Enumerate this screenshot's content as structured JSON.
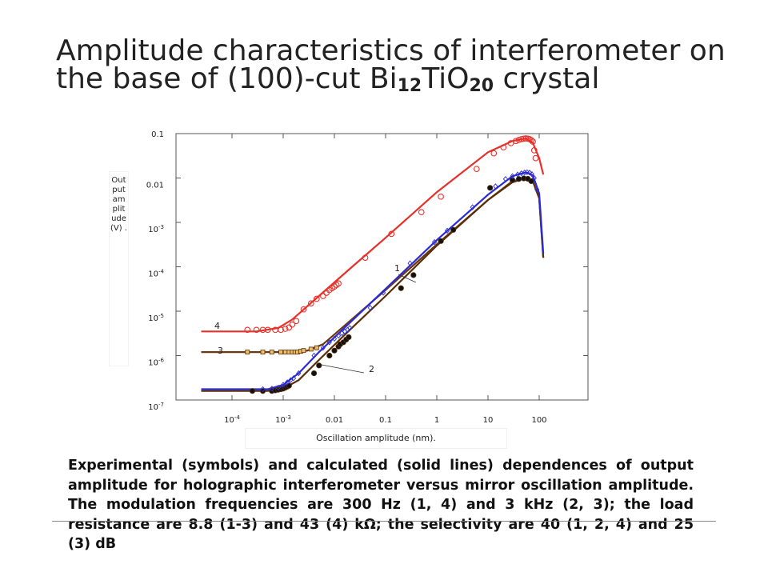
{
  "slide": {
    "title_part1": "Amplitude characteristics of interferometer on the base of  (100)-cut Bi",
    "title_sub1": "12",
    "title_part2": "TiO",
    "title_sub2": "20",
    "title_part3": " crystal",
    "caption": "Experimental (symbols) and calculated (solid lines) dependences of output amplitude for holographic interferometer versus mirror oscillation amplitude. The modulation frequencies are 300 Hz (1, 4) and 3 kHz (2, 3); the load resistance are 8.8 (1-3) and 43 (4) kΩ; the selectivity are 40 (1, 2, 4) and 25 (3) dB"
  },
  "chart_data": {
    "type": "line",
    "title": "",
    "xlabel": "Oscillation amplitude (nm).",
    "ylabel": "Out put am plit ude (V) .",
    "xscale": "log",
    "yscale": "log",
    "xlim": [
      0.0001,
      100
    ],
    "ylim": [
      1e-07,
      0.1
    ],
    "x_tick_labels": [
      {
        "value": 0.0001,
        "base": "10",
        "exp": "-4"
      },
      {
        "value": 0.001,
        "base": "10",
        "exp": "-3"
      },
      {
        "value": 0.01,
        "label": "0.01"
      },
      {
        "value": 0.1,
        "label": "0.1"
      },
      {
        "value": 1,
        "label": "1"
      },
      {
        "value": 10,
        "label": "10"
      },
      {
        "value": 100,
        "label": "100"
      }
    ],
    "y_tick_labels": [
      {
        "value": 0.1,
        "label": "0.1"
      },
      {
        "value": 0.01,
        "label": "0.01"
      },
      {
        "value": 0.001,
        "base": "10",
        "exp": "-3"
      },
      {
        "value": 0.0001,
        "base": "10",
        "exp": "-4"
      },
      {
        "value": 1e-05,
        "base": "10",
        "exp": "-5"
      },
      {
        "value": 1e-06,
        "base": "10",
        "exp": "-6"
      },
      {
        "value": 1e-07,
        "base": "10",
        "exp": "-7"
      }
    ],
    "grid": false,
    "curve_labels": [
      "1",
      "2",
      "3",
      "4"
    ],
    "series": [
      {
        "id": "4",
        "color": "#e8302a",
        "marker": "circle",
        "line_x": [
          2.5e-05,
          0.0003,
          0.0008,
          0.0015,
          0.005,
          0.02,
          0.1,
          1,
          10,
          30,
          55,
          75,
          100,
          120
        ],
        "line_y": [
          3.5e-06,
          3.5e-06,
          4.2e-06,
          6.5e-06,
          2.2e-05,
          9e-05,
          0.00045,
          0.0048,
          0.038,
          0.068,
          0.078,
          0.062,
          0.028,
          0.012
        ],
        "points_x": [
          0.0002,
          0.0003,
          0.0004,
          0.0005,
          0.0007,
          0.0009,
          0.0011,
          0.0013,
          0.0015,
          0.0018,
          0.0025,
          0.0035,
          0.0045,
          0.006,
          0.007,
          0.008,
          0.009,
          0.01,
          0.011,
          0.012,
          0.04,
          0.13,
          0.5,
          1.2,
          6,
          13,
          20,
          28,
          35,
          40,
          45,
          50,
          55,
          60,
          65,
          70,
          75,
          80,
          85
        ],
        "points_y": [
          3.8e-06,
          3.8e-06,
          3.8e-06,
          3.8e-06,
          3.8e-06,
          3.8e-06,
          4e-06,
          4.3e-06,
          5e-06,
          6e-06,
          1.1e-05,
          1.5e-05,
          1.9e-05,
          2.2e-05,
          2.6e-05,
          3e-05,
          3.3e-05,
          3.6e-05,
          3.9e-05,
          4.2e-05,
          0.00016,
          0.00055,
          0.0017,
          0.0038,
          0.016,
          0.036,
          0.049,
          0.061,
          0.068,
          0.072,
          0.075,
          0.077,
          0.078,
          0.077,
          0.075,
          0.071,
          0.066,
          0.042,
          0.028
        ]
      },
      {
        "id": "3",
        "color": "#6b3a10",
        "marker": "square",
        "line_x": [
          2.5e-05,
          0.002,
          0.003,
          0.006,
          0.02,
          0.1,
          1,
          10,
          30,
          55,
          75,
          100,
          120
        ],
        "line_y": [
          1.2e-06,
          1.2e-06,
          1.3e-06,
          1.8e-06,
          6e-06,
          3e-05,
          0.00032,
          0.0032,
          0.0085,
          0.01,
          0.0085,
          0.0035,
          0.00016
        ],
        "points_x": [
          0.0002,
          0.0004,
          0.0006,
          0.0009,
          0.0011,
          0.0013,
          0.0015,
          0.0017,
          0.0019,
          0.0022,
          0.0025,
          0.0035,
          0.0045
        ],
        "points_y": [
          1.2e-06,
          1.2e-06,
          1.2e-06,
          1.2e-06,
          1.2e-06,
          1.2e-06,
          1.2e-06,
          1.2e-06,
          1.2e-06,
          1.25e-06,
          1.3e-06,
          1.4e-06,
          1.5e-06
        ]
      },
      {
        "id": "2",
        "color": "#5a2f08",
        "marker": "filled-circle",
        "line_x": [
          2.5e-05,
          0.0005,
          0.001,
          0.002,
          0.005,
          0.02,
          0.1,
          1,
          10,
          30,
          55,
          75,
          100,
          120
        ],
        "line_y": [
          1.6e-07,
          1.6e-07,
          1.8e-07,
          2.8e-07,
          8e-07,
          3.8e-06,
          2.2e-05,
          0.0003,
          0.0032,
          0.008,
          0.01,
          0.0085,
          0.0035,
          0.00016
        ],
        "points_x": [
          0.00025,
          0.0004,
          0.0006,
          0.0007,
          0.0008,
          0.0009,
          0.001,
          0.0011,
          0.0012,
          0.0013,
          0.004,
          0.005,
          0.008,
          0.01,
          0.012,
          0.013,
          0.015,
          0.017,
          0.019,
          0.2,
          0.35,
          1.2,
          2.1,
          11,
          30,
          40,
          50,
          60,
          70
        ],
        "points_y": [
          1.6e-07,
          1.6e-07,
          1.6e-07,
          1.65e-07,
          1.7e-07,
          1.75e-07,
          1.8e-07,
          1.9e-07,
          2e-07,
          2.1e-07,
          4e-07,
          6e-07,
          1e-06,
          1.3e-06,
          1.6e-06,
          1.8e-06,
          2e-06,
          2.3e-06,
          2.6e-06,
          3.3e-05,
          6.5e-05,
          0.00038,
          0.00068,
          0.006,
          0.009,
          0.0095,
          0.0098,
          0.0096,
          0.0085
        ]
      },
      {
        "id": "1",
        "color": "#2b2bd6",
        "marker": "diamond",
        "line_x": [
          2.5e-05,
          0.0005,
          0.001,
          0.002,
          0.005,
          0.02,
          0.1,
          1,
          10,
          30,
          55,
          75,
          100,
          120
        ],
        "line_y": [
          1.75e-07,
          1.75e-07,
          2.2e-07,
          4e-07,
          1.2e-06,
          5.5e-06,
          3.2e-05,
          0.0004,
          0.0042,
          0.011,
          0.0135,
          0.0115,
          0.0045,
          0.0002
        ],
        "points_x": [
          0.0004,
          0.0006,
          0.0008,
          0.001,
          0.0012,
          0.0014,
          0.0016,
          0.002,
          0.004,
          0.006,
          0.008,
          0.01,
          0.012,
          0.014,
          0.016,
          0.018,
          0.02,
          0.05,
          0.09,
          0.3,
          0.9,
          1.6,
          5,
          14,
          22,
          30,
          38,
          45,
          52,
          58,
          65,
          72,
          80,
          90
        ],
        "points_y": [
          1.75e-07,
          1.8e-07,
          1.9e-07,
          2.2e-07,
          2.5e-07,
          2.8e-07,
          3.1e-07,
          4e-07,
          1e-06,
          1.5e-06,
          2e-06,
          2.4e-06,
          2.8e-06,
          3.2e-06,
          3.5e-06,
          3.8e-06,
          4.2e-06,
          1.2e-05,
          2.6e-05,
          0.00012,
          0.00036,
          0.00065,
          0.0022,
          0.0065,
          0.0095,
          0.011,
          0.012,
          0.0128,
          0.0133,
          0.0135,
          0.0132,
          0.0122,
          0.01,
          0.0055
        ]
      }
    ]
  }
}
